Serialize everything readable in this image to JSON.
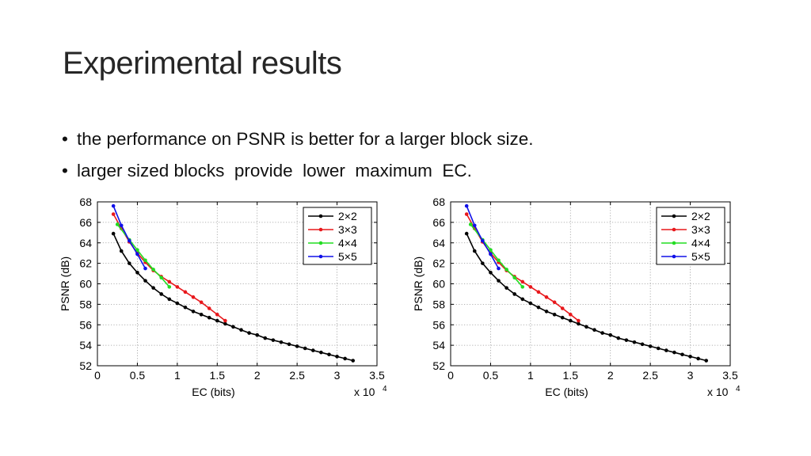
{
  "slide": {
    "title": "Experimental results",
    "bullets": [
      "the performance on PSNR is better for a larger block size.",
      "larger sized blocks  provide  lower  maximum  EC."
    ]
  },
  "chart_data": [
    {
      "type": "line",
      "xlabel": "EC (bits)",
      "ylabel": "PSNR (dB)",
      "x_multiplier_label": "x 10",
      "x_multiplier_exponent": "4",
      "xlim": [
        0,
        3.5
      ],
      "ylim": [
        52,
        68
      ],
      "xticks": [
        "0",
        "0.5",
        "1",
        "1.5",
        "2",
        "2.5",
        "3",
        "3.5"
      ],
      "yticks": [
        "52",
        "54",
        "56",
        "58",
        "60",
        "62",
        "64",
        "66",
        "68"
      ],
      "grid": true,
      "legend_position": "top-right",
      "series": [
        {
          "name": "2×2",
          "color": "#000000",
          "x": [
            0.2,
            0.3,
            0.4,
            0.5,
            0.6,
            0.7,
            0.8,
            0.9,
            1.0,
            1.1,
            1.2,
            1.3,
            1.4,
            1.5,
            1.6,
            1.7,
            1.8,
            1.9,
            2.0,
            2.1,
            2.2,
            2.3,
            2.4,
            2.5,
            2.6,
            2.7,
            2.8,
            2.9,
            3.0,
            3.1,
            3.2
          ],
          "y": [
            64.9,
            63.2,
            62.0,
            61.1,
            60.3,
            59.6,
            59.0,
            58.5,
            58.1,
            57.7,
            57.3,
            57.0,
            56.7,
            56.4,
            56.1,
            55.8,
            55.5,
            55.2,
            55.0,
            54.7,
            54.5,
            54.3,
            54.1,
            53.9,
            53.7,
            53.5,
            53.3,
            53.1,
            52.9,
            52.7,
            52.5
          ]
        },
        {
          "name": "3×3",
          "color": "#e8181c",
          "x": [
            0.2,
            0.3,
            0.4,
            0.5,
            0.6,
            0.7,
            0.8,
            0.9,
            1.0,
            1.1,
            1.2,
            1.3,
            1.4,
            1.5,
            1.6
          ],
          "y": [
            66.8,
            65.4,
            64.1,
            63.0,
            62.1,
            61.3,
            60.7,
            60.2,
            59.7,
            59.2,
            58.7,
            58.2,
            57.6,
            57.0,
            56.4
          ]
        },
        {
          "name": "4×4",
          "color": "#22dd22",
          "x": [
            0.25,
            0.4,
            0.5,
            0.6,
            0.7,
            0.8,
            0.9
          ],
          "y": [
            65.8,
            64.3,
            63.3,
            62.3,
            61.4,
            60.6,
            59.7
          ]
        },
        {
          "name": "5×5",
          "color": "#1010e8",
          "x": [
            0.2,
            0.3,
            0.4,
            0.5,
            0.6
          ],
          "y": [
            67.6,
            65.7,
            64.2,
            62.9,
            61.5
          ]
        }
      ]
    },
    {
      "type": "line",
      "xlabel": "EC (bits)",
      "ylabel": "PSNR (dB)",
      "x_multiplier_label": "x 10",
      "x_multiplier_exponent": "4",
      "xlim": [
        0,
        3.5
      ],
      "ylim": [
        52,
        68
      ],
      "xticks": [
        "0",
        "0.5",
        "1",
        "1.5",
        "2",
        "2.5",
        "3",
        "3.5"
      ],
      "yticks": [
        "52",
        "54",
        "56",
        "58",
        "60",
        "62",
        "64",
        "66",
        "68"
      ],
      "grid": true,
      "legend_position": "top-right",
      "series": [
        {
          "name": "2×2",
          "color": "#000000",
          "x": [
            0.2,
            0.3,
            0.4,
            0.5,
            0.6,
            0.7,
            0.8,
            0.9,
            1.0,
            1.1,
            1.2,
            1.3,
            1.4,
            1.5,
            1.6,
            1.7,
            1.8,
            1.9,
            2.0,
            2.1,
            2.2,
            2.3,
            2.4,
            2.5,
            2.6,
            2.7,
            2.8,
            2.9,
            3.0,
            3.1,
            3.2
          ],
          "y": [
            64.9,
            63.2,
            62.0,
            61.1,
            60.3,
            59.6,
            59.0,
            58.5,
            58.1,
            57.7,
            57.3,
            57.0,
            56.7,
            56.4,
            56.1,
            55.8,
            55.5,
            55.2,
            55.0,
            54.7,
            54.5,
            54.3,
            54.1,
            53.9,
            53.7,
            53.5,
            53.3,
            53.1,
            52.9,
            52.7,
            52.5
          ]
        },
        {
          "name": "3×3",
          "color": "#e8181c",
          "x": [
            0.2,
            0.3,
            0.4,
            0.5,
            0.6,
            0.7,
            0.8,
            0.9,
            1.0,
            1.1,
            1.2,
            1.3,
            1.4,
            1.5,
            1.6
          ],
          "y": [
            66.8,
            65.4,
            64.1,
            63.0,
            62.1,
            61.3,
            60.7,
            60.2,
            59.7,
            59.2,
            58.7,
            58.2,
            57.6,
            57.0,
            56.4
          ]
        },
        {
          "name": "4×4",
          "color": "#22dd22",
          "x": [
            0.25,
            0.4,
            0.5,
            0.6,
            0.7,
            0.8,
            0.9
          ],
          "y": [
            65.8,
            64.3,
            63.3,
            62.3,
            61.4,
            60.6,
            59.7
          ]
        },
        {
          "name": "5×5",
          "color": "#1010e8",
          "x": [
            0.2,
            0.3,
            0.4,
            0.5,
            0.6
          ],
          "y": [
            67.6,
            65.7,
            64.2,
            62.9,
            61.5
          ]
        }
      ]
    }
  ]
}
